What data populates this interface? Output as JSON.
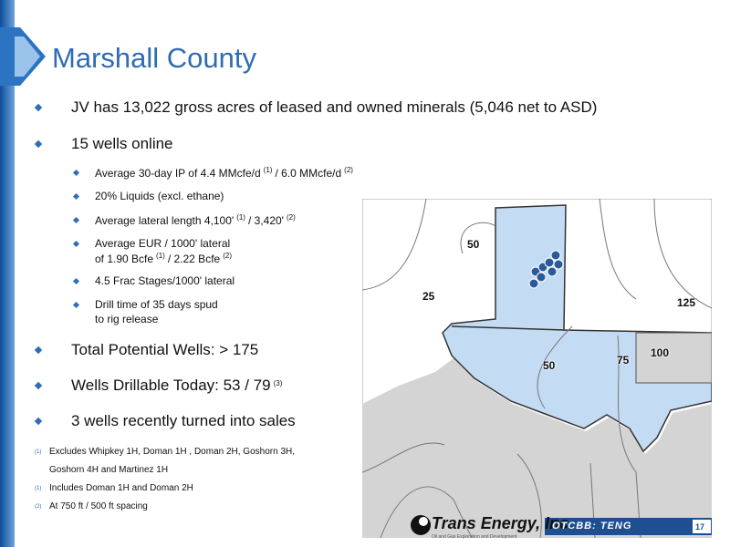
{
  "title": "Marshall County",
  "bullets": [
    {
      "lines": [
        [
          {
            "text": "JV has 13,022 gross acres of leased and owned minerals (5,046 net to ASD)"
          }
        ]
      ]
    },
    {
      "lines": [
        [
          {
            "text": "15 wells online"
          }
        ]
      ],
      "sub": [
        {
          "lines": [
            [
              {
                "text": "Average 30-day IP of 4.4 MMcfe/d"
              },
              {
                "sup": "(1)"
              },
              {
                "text": "/ 6.0 MMcfe/d"
              },
              {
                "sup": "(2)"
              }
            ]
          ]
        },
        {
          "lines": [
            [
              {
                "text": "20% Liquids (excl. ethane)"
              }
            ]
          ]
        },
        {
          "lines": [
            [
              {
                "text": "Average lateral length 4,100'"
              },
              {
                "sup": "(1)"
              },
              {
                "text": "/ 3,420'"
              },
              {
                "sup": "(2)"
              }
            ]
          ]
        },
        {
          "lines": [
            [
              {
                "text": "Average EUR / 1000' lateral"
              }
            ],
            [
              {
                "text": "of 1.90 Bcfe"
              },
              {
                "sup": "(1)"
              },
              {
                "text": "/ 2.22 Bcfe"
              },
              {
                "sup": "(2)"
              }
            ]
          ]
        },
        {
          "lines": [
            [
              {
                "text": "4.5 Frac Stages/1000' lateral"
              }
            ]
          ]
        },
        {
          "lines": [
            [
              {
                "text": "Drill time of 35 days spud"
              }
            ],
            [
              {
                "text": "to rig release"
              }
            ]
          ]
        }
      ]
    },
    {
      "lines": [
        [
          {
            "text": "Total Potential Wells:  > 175"
          }
        ]
      ]
    },
    {
      "lines": [
        [
          {
            "text": "Wells Drillable Today:  53 / 79"
          },
          {
            "sup": "(3)"
          }
        ]
      ]
    },
    {
      "lines": [
        [
          {
            "text": "3 wells recently turned into sales"
          }
        ]
      ]
    }
  ],
  "footnotes": [
    {
      "mark": "(1)",
      "lines": [
        "Excludes Whipkey 1H, Doman 1H , Doman 2H, Goshorn 3H,",
        "Goshorn 4H and Martinez 1H"
      ]
    },
    {
      "mark": "(1)",
      "lines": [
        "Includes Doman 1H and Doman 2H"
      ]
    },
    {
      "mark": "(2)",
      "lines": [
        "At 750 ft / 500 ft spacing"
      ]
    }
  ],
  "map_labels": [
    "50",
    "25",
    "125",
    "50",
    "75",
    "100"
  ],
  "footer": {
    "company": "Trans Energy, Inc.",
    "tagline": "Oil and Gas Exploration and Development",
    "ticker": "OTCBB: TENG",
    "page": "17"
  }
}
